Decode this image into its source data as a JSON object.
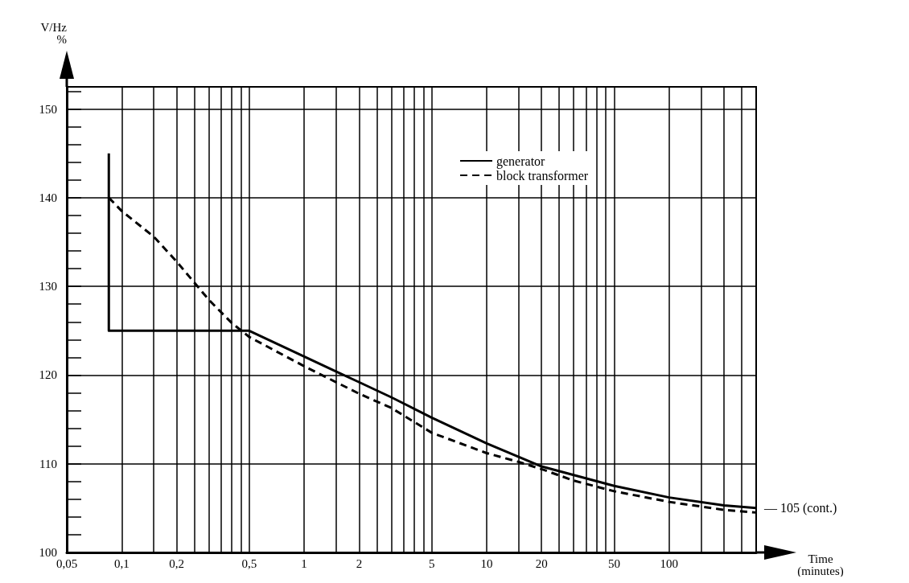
{
  "chart_data": {
    "type": "line",
    "xlabel": "Time\n(minutes)",
    "ylabel": "V/Hz\n%",
    "log": "x",
    "xlim": [
      0.05,
      300
    ],
    "ylim": [
      100,
      152.5
    ],
    "xticks": [
      {
        "value": 0.05,
        "label": "0,05"
      },
      {
        "value": 0.1,
        "label": "0,1"
      },
      {
        "value": 0.15,
        "label": null
      },
      {
        "value": 0.2,
        "label": "0,2"
      },
      {
        "value": 0.25,
        "label": null
      },
      {
        "value": 0.3,
        "label": null
      },
      {
        "value": 0.35,
        "label": null
      },
      {
        "value": 0.4,
        "label": null
      },
      {
        "value": 0.45,
        "label": null
      },
      {
        "value": 0.5,
        "label": "0,5"
      },
      1,
      {
        "value": 1.5,
        "label": null
      },
      2,
      {
        "value": 2.5,
        "label": null
      },
      {
        "value": 3,
        "label": null
      },
      {
        "value": 3.5,
        "label": null
      },
      {
        "value": 4,
        "label": null
      },
      {
        "value": 4.5,
        "label": null
      },
      5,
      10,
      {
        "value": 15,
        "label": null
      },
      20,
      {
        "value": 25,
        "label": null
      },
      {
        "value": 30,
        "label": null
      },
      {
        "value": 35,
        "label": null
      },
      {
        "value": 40,
        "label": null
      },
      {
        "value": 45,
        "label": null
      },
      50,
      100,
      {
        "value": 150,
        "label": null
      },
      {
        "value": 200,
        "label": null
      },
      {
        "value": 250,
        "label": null
      },
      {
        "value": 300,
        "label": null
      }
    ],
    "yticks": [
      100,
      110,
      120,
      130,
      140,
      150
    ],
    "grid": true,
    "legend": "top",
    "marker": "none",
    "series": [
      {
        "name": "generator",
        "color": "#000000",
        "line_style": "solid",
        "x": [
          0.085,
          0.085,
          0.5,
          1,
          1.5,
          2,
          3,
          5,
          10,
          20,
          50,
          100,
          200,
          300
        ],
        "values": [
          145,
          125,
          125,
          122.1,
          120.4,
          119.2,
          117.5,
          115.2,
          112.3,
          109.7,
          107.5,
          106.2,
          105.3,
          105
        ]
      },
      {
        "name": "block transformer",
        "color": "#000000",
        "line_style": "dashed",
        "x": [
          0.085,
          0.1,
          0.15,
          0.2,
          0.3,
          0.4,
          0.5,
          1,
          2,
          3,
          5,
          10,
          15,
          20,
          30,
          50,
          100,
          200,
          300
        ],
        "values": [
          140,
          138.5,
          135.6,
          132.8,
          128.5,
          125.9,
          124.3,
          121,
          117.9,
          116.3,
          113.5,
          111.2,
          110.2,
          109.4,
          108.1,
          106.9,
          105.7,
          104.8,
          104.5
        ]
      }
    ],
    "annotations": [
      {
        "text": "— 105 (cont.)",
        "x": 300,
        "y": 105
      }
    ]
  }
}
